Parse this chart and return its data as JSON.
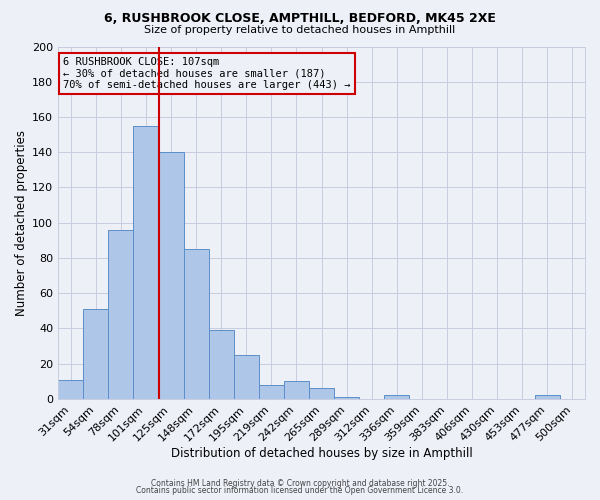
{
  "title1": "6, RUSHBROOK CLOSE, AMPTHILL, BEDFORD, MK45 2XE",
  "title2": "Size of property relative to detached houses in Ampthill",
  "xlabel": "Distribution of detached houses by size in Ampthill",
  "ylabel": "Number of detached properties",
  "categories": [
    "31sqm",
    "54sqm",
    "78sqm",
    "101sqm",
    "125sqm",
    "148sqm",
    "172sqm",
    "195sqm",
    "219sqm",
    "242sqm",
    "265sqm",
    "289sqm",
    "312sqm",
    "336sqm",
    "359sqm",
    "383sqm",
    "406sqm",
    "430sqm",
    "453sqm",
    "477sqm",
    "500sqm"
  ],
  "values": [
    11,
    51,
    96,
    155,
    140,
    85,
    39,
    25,
    8,
    10,
    6,
    1,
    0,
    2,
    0,
    0,
    0,
    0,
    0,
    2,
    0
  ],
  "bar_color": "#aec6e8",
  "bar_edge_color": "#5b8fc9",
  "vline_color": "#cc0000",
  "vline_x_index": 3.5,
  "annotation_line1": "6 RUSHBROOK CLOSE: 107sqm",
  "annotation_line2": "← 30% of detached houses are smaller (187)",
  "annotation_line3": "70% of semi-detached houses are larger (443) →",
  "annotation_fontsize": 7.5,
  "box_edge_color": "#cc0000",
  "ylim": [
    0,
    200
  ],
  "yticks": [
    0,
    20,
    40,
    60,
    80,
    100,
    120,
    140,
    160,
    180,
    200
  ],
  "background_color": "#eef0f8",
  "grid_color": "#c8cce0",
  "footer1": "Contains HM Land Registry data © Crown copyright and database right 2025.",
  "footer2": "Contains public sector information licensed under the Open Government Licence 3.0."
}
